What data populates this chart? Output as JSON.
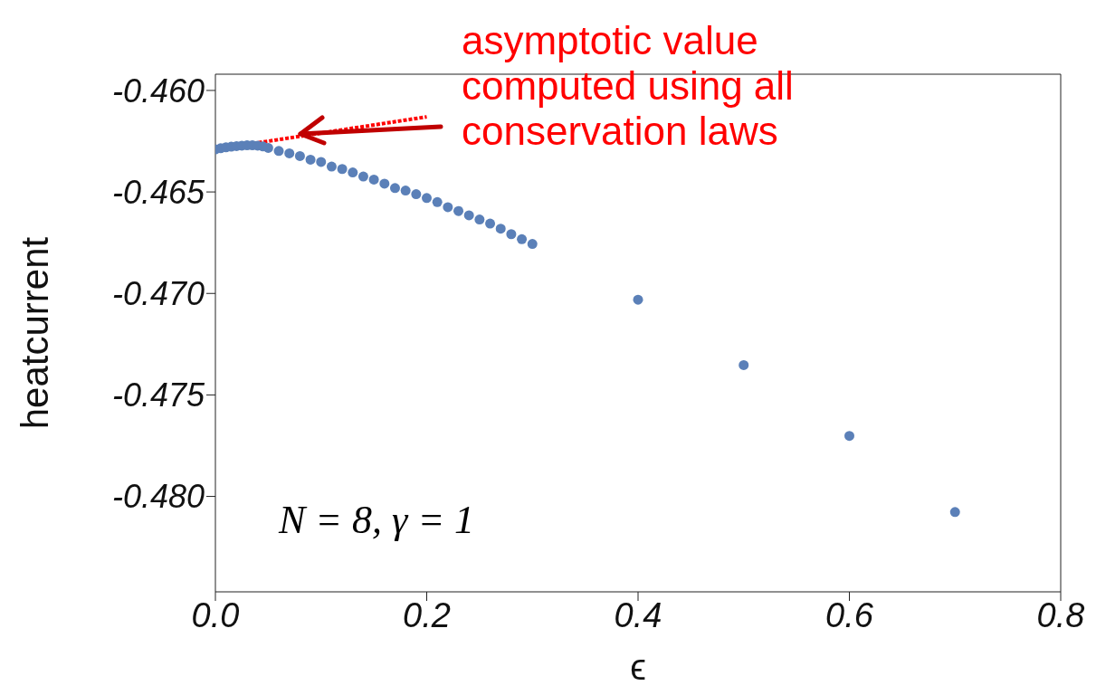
{
  "chart_data": {
    "type": "scatter",
    "xlabel": "ϵ",
    "ylabel": "heatcurrent",
    "xlim": [
      0,
      0.8
    ],
    "ylim": [
      -0.4847,
      -0.4592
    ],
    "xticks": [
      {
        "value": 0,
        "label": "0.0"
      },
      {
        "value": 0.2,
        "label": "0.2"
      },
      {
        "value": 0.4,
        "label": "0.4"
      },
      {
        "value": 0.6,
        "label": "0.6"
      },
      {
        "value": 0.8,
        "label": "0.8"
      }
    ],
    "yticks": [
      {
        "value": -0.46,
        "label": "-0.460"
      },
      {
        "value": -0.465,
        "label": "-0.465"
      },
      {
        "value": -0.47,
        "label": "-0.470"
      },
      {
        "value": -0.475,
        "label": "-0.475"
      },
      {
        "value": -0.48,
        "label": "-0.480"
      }
    ],
    "grid": false,
    "legend": false,
    "marker": "circle",
    "series": [
      {
        "color": "#5b80b8",
        "x": [
          0,
          0.005,
          0.01,
          0.015,
          0.02,
          0.025,
          0.03,
          0.035,
          0.04,
          0.045,
          0.05,
          0.06,
          0.07,
          0.08,
          0.09,
          0.1,
          0.11,
          0.12,
          0.13,
          0.14,
          0.15,
          0.16,
          0.17,
          0.18,
          0.19,
          0.2,
          0.21,
          0.22,
          0.23,
          0.24,
          0.25,
          0.26,
          0.27,
          0.28,
          0.29,
          0.3,
          0.4,
          0.5,
          0.6,
          0.7
        ],
        "values": [
          -0.4629,
          -0.46285,
          -0.4628,
          -0.46277,
          -0.46274,
          -0.46272,
          -0.4627,
          -0.4627,
          -0.46272,
          -0.46276,
          -0.46283,
          -0.46298,
          -0.4631,
          -0.46323,
          -0.46341,
          -0.46352,
          -0.46375,
          -0.46387,
          -0.46404,
          -0.46424,
          -0.46439,
          -0.46459,
          -0.46481,
          -0.46493,
          -0.46511,
          -0.4653,
          -0.4655,
          -0.46575,
          -0.46594,
          -0.46615,
          -0.46636,
          -0.46656,
          -0.46681,
          -0.46708,
          -0.46733,
          -0.46756,
          -0.47031,
          -0.47353,
          -0.47702,
          -0.48077
        ]
      },
      {
        "type": "line",
        "color": "#ff0000",
        "marker": "none",
        "line_style": "dotted",
        "x": [
          0,
          0.2
        ],
        "values": [
          -0.4629,
          -0.4613
        ]
      }
    ],
    "annotations": [
      {
        "text": "asymptotic value computed using all conservation laws",
        "x": 0.08,
        "y": -0.4622
      },
      "N = 8, γ = 1"
    ]
  }
}
